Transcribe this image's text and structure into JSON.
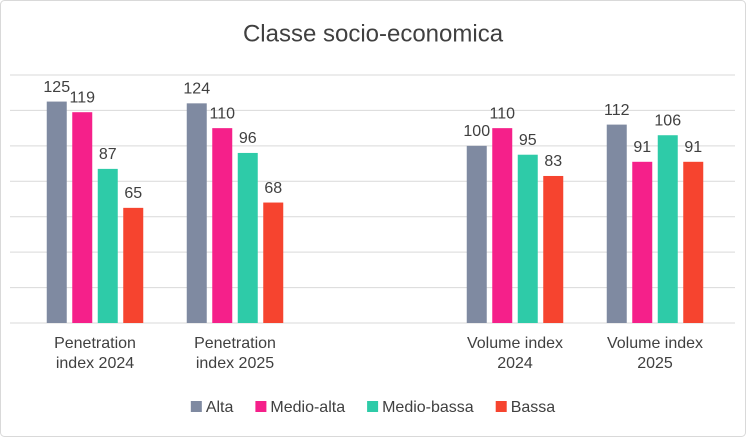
{
  "chart_data": {
    "type": "bar",
    "title": "Classe socio-economica",
    "categories": [
      "Penetration index 2024",
      "Penetration index 2025",
      null,
      "Volume index 2024",
      "Volume index 2025"
    ],
    "series": [
      {
        "name": "Alta",
        "color": "#7f8aa1",
        "values": [
          125,
          124,
          null,
          100,
          112
        ]
      },
      {
        "name": "Medio-alta",
        "color": "#f5208a",
        "values": [
          119,
          110,
          null,
          110,
          91
        ]
      },
      {
        "name": "Medio-bassa",
        "color": "#2ecba8",
        "values": [
          87,
          96,
          null,
          95,
          106
        ]
      },
      {
        "name": "Bassa",
        "color": "#f6442f",
        "values": [
          65,
          68,
          null,
          83,
          91
        ]
      }
    ],
    "ylim": [
      0,
      140
    ],
    "yticks": [
      0,
      20,
      40,
      60,
      80,
      100,
      120,
      140
    ],
    "grid": true,
    "legend": "bottom"
  }
}
